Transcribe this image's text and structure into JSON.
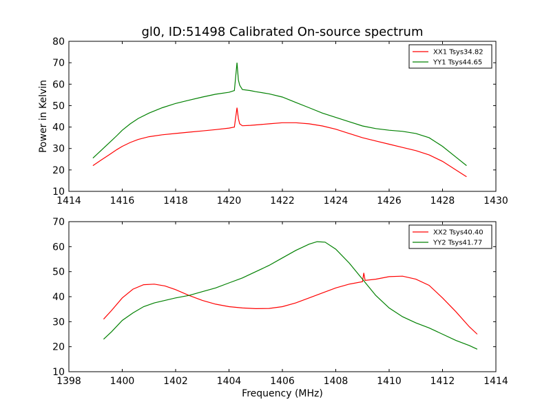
{
  "figure": {
    "title": "gl0, ID:51498 Calibrated On-source spectrum",
    "ylabel": "Power in Kelvin",
    "xlabel": "Frequency (MHz)"
  },
  "chart_data": [
    {
      "type": "line",
      "title": "gl0, ID:51498 Calibrated On-source spectrum",
      "ylabel": "Power in Kelvin",
      "xlabel": "",
      "xlim": [
        1414,
        1430
      ],
      "ylim": [
        10,
        80
      ],
      "xticks": [
        1414,
        1416,
        1418,
        1420,
        1422,
        1424,
        1426,
        1428,
        1430
      ],
      "yticks": [
        10,
        20,
        30,
        40,
        50,
        60,
        70,
        80
      ],
      "legend_position": "top-right",
      "series": [
        {
          "name": "XX1 Tsys34.82",
          "color": "#ff0000",
          "x": [
            1414.9,
            1415.2,
            1415.5,
            1415.8,
            1416.0,
            1416.3,
            1416.6,
            1417.0,
            1417.5,
            1418.0,
            1418.5,
            1419.0,
            1419.5,
            1420.0,
            1420.2,
            1420.3,
            1420.35,
            1420.4,
            1420.5,
            1420.8,
            1421.0,
            1421.5,
            1422.0,
            1422.5,
            1423.0,
            1423.5,
            1424.0,
            1424.5,
            1425.0,
            1425.5,
            1426.0,
            1426.5,
            1427.0,
            1427.5,
            1428.0,
            1428.5,
            1428.9
          ],
          "y": [
            22.0,
            24.5,
            27.0,
            29.5,
            31.0,
            32.8,
            34.2,
            35.5,
            36.4,
            37.0,
            37.6,
            38.2,
            38.8,
            39.5,
            40.0,
            49.0,
            44.0,
            41.5,
            40.6,
            40.8,
            41.0,
            41.5,
            42.0,
            42.0,
            41.5,
            40.5,
            39.0,
            37.0,
            35.0,
            33.5,
            32.0,
            30.5,
            29.0,
            27.0,
            24.0,
            20.0,
            16.8
          ]
        },
        {
          "name": "YY1 Tsys44.65",
          "color": "#008000",
          "x": [
            1414.9,
            1415.2,
            1415.5,
            1415.8,
            1416.0,
            1416.3,
            1416.6,
            1417.0,
            1417.5,
            1418.0,
            1418.5,
            1419.0,
            1419.5,
            1420.0,
            1420.2,
            1420.3,
            1420.35,
            1420.4,
            1420.5,
            1420.8,
            1421.0,
            1421.5,
            1422.0,
            1422.5,
            1423.0,
            1423.5,
            1424.0,
            1424.5,
            1425.0,
            1425.5,
            1426.0,
            1426.5,
            1427.0,
            1427.5,
            1428.0,
            1428.5,
            1428.9
          ],
          "y": [
            25.5,
            29.0,
            32.5,
            36.0,
            38.5,
            41.5,
            44.0,
            46.5,
            49.0,
            51.0,
            52.5,
            54.0,
            55.3,
            56.2,
            57.0,
            70.0,
            62.0,
            59.5,
            57.5,
            57.0,
            56.5,
            55.5,
            54.0,
            51.5,
            49.0,
            46.5,
            44.5,
            42.5,
            40.5,
            39.3,
            38.5,
            38.0,
            37.0,
            35.0,
            31.0,
            26.0,
            22.0
          ]
        }
      ]
    },
    {
      "type": "line",
      "title": "",
      "ylabel": "",
      "xlabel": "Frequency (MHz)",
      "xlim": [
        1398,
        1414
      ],
      "ylim": [
        10,
        70
      ],
      "xticks": [
        1398,
        1400,
        1402,
        1404,
        1406,
        1408,
        1410,
        1412,
        1414
      ],
      "yticks": [
        10,
        20,
        30,
        40,
        50,
        60,
        70
      ],
      "legend_position": "top-right",
      "series": [
        {
          "name": "XX2 Tsys40.40",
          "color": "#ff0000",
          "x": [
            1399.3,
            1399.6,
            1400.0,
            1400.4,
            1400.8,
            1401.2,
            1401.6,
            1402.0,
            1402.5,
            1403.0,
            1403.5,
            1404.0,
            1404.5,
            1405.0,
            1405.5,
            1406.0,
            1406.5,
            1407.0,
            1407.5,
            1408.0,
            1408.5,
            1409.0,
            1409.05,
            1409.1,
            1409.5,
            1410.0,
            1410.5,
            1411.0,
            1411.5,
            1412.0,
            1412.5,
            1413.0,
            1413.3
          ],
          "y": [
            31.0,
            34.5,
            39.5,
            43.0,
            44.8,
            45.0,
            44.3,
            42.8,
            40.5,
            38.5,
            37.0,
            36.0,
            35.5,
            35.2,
            35.3,
            36.0,
            37.5,
            39.5,
            41.5,
            43.5,
            45.0,
            46.0,
            49.5,
            46.5,
            47.0,
            48.0,
            48.2,
            47.0,
            44.5,
            39.5,
            34.0,
            28.0,
            25.0
          ]
        },
        {
          "name": "YY2 Tsys41.77",
          "color": "#008000",
          "x": [
            1399.3,
            1399.6,
            1400.0,
            1400.4,
            1400.8,
            1401.2,
            1401.6,
            1402.0,
            1402.5,
            1403.0,
            1403.5,
            1404.0,
            1404.5,
            1405.0,
            1405.5,
            1406.0,
            1406.5,
            1407.0,
            1407.3,
            1407.6,
            1408.0,
            1408.5,
            1409.0,
            1409.5,
            1410.0,
            1410.5,
            1411.0,
            1411.5,
            1412.0,
            1412.5,
            1413.0,
            1413.3
          ],
          "y": [
            23.0,
            26.0,
            30.5,
            33.5,
            36.0,
            37.5,
            38.5,
            39.5,
            40.5,
            42.0,
            43.5,
            45.5,
            47.5,
            50.0,
            52.5,
            55.5,
            58.5,
            61.0,
            62.0,
            61.8,
            59.0,
            53.5,
            47.0,
            40.5,
            35.5,
            32.0,
            29.5,
            27.5,
            25.0,
            22.5,
            20.5,
            19.0
          ]
        }
      ]
    }
  ]
}
